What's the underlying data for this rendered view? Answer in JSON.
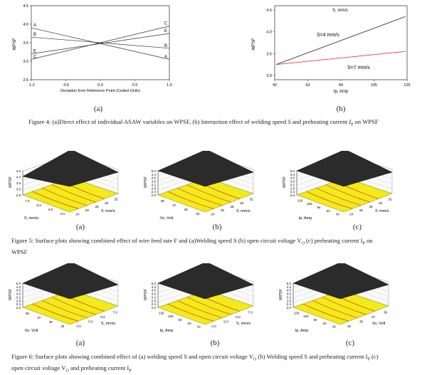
{
  "fig4": {
    "a": {
      "type": "line",
      "ylabel": "WPSF",
      "xlabel": "Deviation from Reference Point (Coded Units)",
      "x_ticks": [
        "-1.0",
        "-0.5",
        "0.0",
        "0.5",
        "1.0"
      ],
      "y_ticks": [
        "2.5",
        "3.0",
        "3.5",
        "4.0",
        "4.5"
      ],
      "xlim": [
        -1,
        1
      ],
      "ylim": [
        2.5,
        4.5
      ],
      "series": [
        {
          "name": "A",
          "start": 3.9,
          "end": 3.05
        },
        {
          "name": "B",
          "start": 3.65,
          "end": 3.35
        },
        {
          "name": "C",
          "start": 3.05,
          "end": 3.95
        },
        {
          "name": "E",
          "start": 3.2,
          "end": 3.75
        }
      ]
    },
    "b": {
      "type": "line",
      "legend_title": "S, mm/s",
      "ylabel": "WPSF",
      "xlabel": "Ip, Amp",
      "x_ticks": [
        "42",
        "63",
        "84",
        "105",
        "126"
      ],
      "y_ticks": [
        "3.0",
        "3.5",
        "4.0",
        "4.5"
      ],
      "xlim": [
        42,
        126
      ],
      "ylim": [
        2.9,
        4.6
      ],
      "series": [
        {
          "name": "S=4 mm/s",
          "color": "#222222",
          "values": [
            3.25,
            4.35
          ]
        },
        {
          "name": "S=7 mm/s",
          "color": "#e02020",
          "values": [
            3.25,
            3.55
          ]
        }
      ]
    },
    "label_a": "(a)",
    "label_b": "(b)",
    "caption_pre": "Figure 4: (a)Direct effect of individual ASAW variables on WPSF, (b) Interaction effect of welding speed ",
    "caption_s": "S",
    "caption_mid": " and preheating current ",
    "caption_ip": "I",
    "caption_ip_sub": "P",
    "caption_post": " on WPSF"
  },
  "fig5": {
    "plots": [
      {
        "label": "(a)",
        "zlabel": "WPSF",
        "z_ticks": [
          "4.5",
          "4.0",
          "3.5",
          "3.0",
          "2.5"
        ],
        "left_axis": "S, mm/s",
        "left_ticks": [
          "7.0",
          "6.0",
          "5.0",
          "4.0"
        ],
        "right_axis": "F, mm/s",
        "right_ticks": [
          "24",
          "26",
          "28",
          "30",
          "32"
        ]
      },
      {
        "label": "(b)",
        "zlabel": "WPSF",
        "z_ticks": [
          "5.0",
          "4.4",
          "4.0",
          "3.6",
          "3.2",
          "2.8",
          "2.4",
          "2.0"
        ],
        "left_axis": "Vo, Volt",
        "left_ticks": [
          "39",
          "37",
          "35",
          "33"
        ],
        "right_axis": "F, mm/s",
        "right_ticks": [
          "24",
          "26",
          "28",
          "30",
          "32"
        ]
      },
      {
        "label": "(c)",
        "zlabel": "WPSF",
        "z_ticks": [
          "5.0",
          "4.4",
          "4.0",
          "3.6",
          "3.2",
          "2.8",
          "2.4",
          "2.0"
        ],
        "left_axis": "Ip, Amp",
        "left_ticks": [
          "126",
          "105",
          "84",
          "63",
          "42"
        ],
        "right_axis": "F, mm/s",
        "right_ticks": [
          "24",
          "26",
          "28",
          "30",
          "32"
        ]
      }
    ],
    "caption": "Figure 5: Surface plots showing combined  effect of wire feed rate F and (a)Welding speed S (b) open circuit voltage V",
    "caption_o": "O",
    "caption_mid": " (c) preheating current I",
    "caption_p": "P",
    "caption_post": " on",
    "caption_line2": "WPSF"
  },
  "fig6": {
    "plots": [
      {
        "label": "(a)",
        "zlabel": "WPSF",
        "z_ticks": [
          "5.0",
          "4.4",
          "4.0",
          "3.6",
          "3.2",
          "2.8",
          "2.4",
          "2.0"
        ],
        "left_axis": "Vo, Volt",
        "left_ticks": [
          "39",
          "37",
          "35",
          "33"
        ],
        "right_axis": "S, mm/s",
        "right_ticks": [
          "4.0",
          "5.0",
          "6.0",
          "7.0"
        ]
      },
      {
        "label": "(b)",
        "zlabel": "WPSF",
        "z_ticks": [
          "5.0",
          "4.4",
          "4.0",
          "3.6",
          "3.2",
          "2.8",
          "2.4",
          "2.0"
        ],
        "left_axis": "Ip, Amp",
        "left_ticks": [
          "126",
          "105",
          "84",
          "63",
          "42"
        ],
        "right_axis": "S, mm/s",
        "right_ticks": [
          "4.0",
          "5.0",
          "6.0",
          "7.0"
        ]
      },
      {
        "label": "(c)",
        "zlabel": "WPSF",
        "z_ticks": [
          "5.0",
          "4.4",
          "4.0",
          "3.6",
          "3.2",
          "2.8",
          "2.4",
          "2.0"
        ],
        "left_axis": "Ip, Amp",
        "left_ticks": [
          "126",
          "105",
          "84",
          "63",
          "42"
        ],
        "right_axis": "Vo, Volt",
        "right_ticks": [
          "33",
          "35",
          "37",
          "39"
        ]
      }
    ],
    "caption": "Figure 6: Surface plots showing combined effect of (a) welding speed S and open circuit voltage V",
    "caption_o": "O",
    "caption_mid": " (b) Welding speed S and preheating current I",
    "caption_p": "P",
    "caption_post": " (c)",
    "caption_line2_pre": "open circuit voltage V",
    "caption_line2_o": "O",
    "caption_line2_mid": " and preheating current I",
    "caption_line2_p": "P"
  },
  "colors": {
    "floor": "#f2ea1a",
    "surface": "#2b2b2b",
    "red": "#e02020"
  }
}
